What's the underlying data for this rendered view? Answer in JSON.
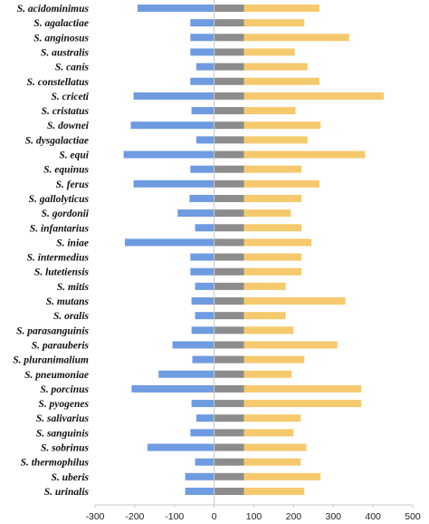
{
  "chart_data": {
    "type": "bar",
    "orientation": "horizontal",
    "stacked": true,
    "categories": [
      "S. acidominimus",
      "S. agalactiae",
      "S. anginosus",
      "S. australis",
      "S. canis",
      "S. constellatus",
      "S. criceti",
      "S. cristatus",
      "S. downei",
      "S. dysgalactiae",
      "S. equi",
      "S. equinus",
      "S. ferus",
      "S. gallolyticus",
      "S. gordonii",
      "S. infantarius",
      "S. iniae",
      "S. intermedius",
      "S. lutetiensis",
      "S. mitis",
      "S. mutans",
      "S. oralis",
      "S. parasanguinis",
      "S. parauberis",
      "S. pluranimalium",
      "S. pneumoniae",
      "S. porcinus",
      "S. pyogenes",
      "S. salivarius",
      "S. sanguinis",
      "S. sobrinus",
      "S. thermophilus",
      "S. uberis",
      "S. urinalis"
    ],
    "series": [
      {
        "color": "#6f9be0",
        "values": [
          -193,
          -60,
          -60,
          -60,
          -45,
          -60,
          -203,
          -57,
          -210,
          -45,
          -228,
          -60,
          -203,
          -62,
          -92,
          -48,
          -225,
          -60,
          -60,
          -48,
          -57,
          -48,
          -57,
          -105,
          -55,
          -140,
          -208,
          -57,
          -45,
          -60,
          -168,
          -48,
          -73,
          -73
        ]
      },
      {
        "color": "#8c8c8c",
        "values": [
          75,
          75,
          75,
          75,
          75,
          75,
          75,
          75,
          75,
          75,
          75,
          75,
          75,
          75,
          75,
          75,
          75,
          75,
          75,
          75,
          75,
          75,
          75,
          75,
          75,
          75,
          75,
          75,
          75,
          75,
          75,
          75,
          75,
          75
        ]
      },
      {
        "color": "#f5c96d",
        "values": [
          190,
          152,
          265,
          128,
          160,
          190,
          352,
          130,
          193,
          160,
          305,
          145,
          190,
          145,
          118,
          145,
          170,
          145,
          145,
          105,
          255,
          105,
          125,
          235,
          152,
          120,
          295,
          295,
          143,
          125,
          157,
          143,
          193,
          152
        ]
      }
    ],
    "xlim": [
      -300,
      500
    ],
    "xticks": [
      "-300",
      "-200",
      "-100",
      "0",
      "100",
      "200",
      "300",
      "400",
      "500"
    ],
    "grid": false,
    "title": "",
    "xlabel": "",
    "ylabel": ""
  }
}
